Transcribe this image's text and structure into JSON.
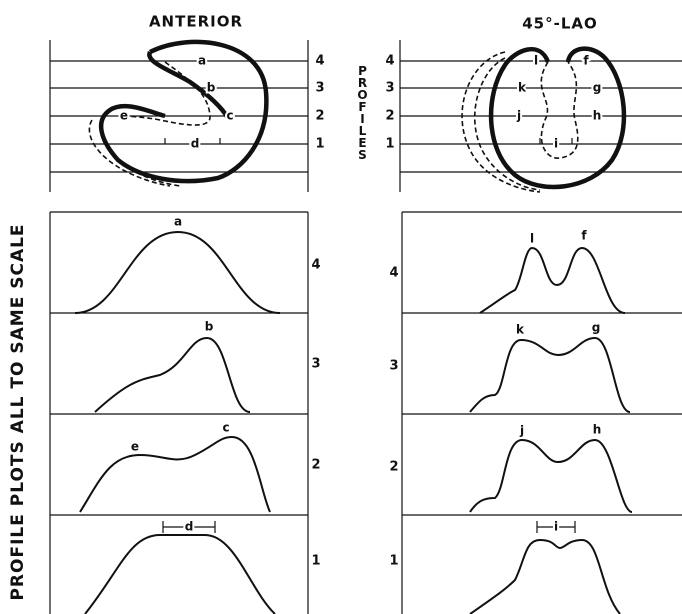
{
  "headers": {
    "left": "ANTERIOR",
    "right": "45°-LAO"
  },
  "center_label": "PROFILES",
  "side_label": "PROFILE PLOTS ALL TO SAME SCALE",
  "anterior": {
    "diagram": {
      "profile_numbers": [
        "4",
        "3",
        "2",
        "1"
      ],
      "labels": [
        "a",
        "b",
        "c",
        "e",
        "d"
      ]
    },
    "plots": [
      {
        "number": "4",
        "labels": [
          "a"
        ]
      },
      {
        "number": "3",
        "labels": [
          "b"
        ]
      },
      {
        "number": "2",
        "labels": [
          "e",
          "c"
        ]
      },
      {
        "number": "1",
        "labels": [
          "d"
        ]
      }
    ]
  },
  "lao": {
    "diagram": {
      "profile_numbers": [
        "4",
        "3",
        "2",
        "1"
      ],
      "labels": [
        "l",
        "f",
        "k",
        "g",
        "j",
        "h",
        "i"
      ]
    },
    "plots": [
      {
        "number": "4",
        "labels": [
          "l",
          "f"
        ]
      },
      {
        "number": "3",
        "labels": [
          "k",
          "g"
        ]
      },
      {
        "number": "2",
        "labels": [
          "j",
          "h"
        ]
      },
      {
        "number": "1",
        "labels": [
          "i"
        ]
      }
    ]
  }
}
